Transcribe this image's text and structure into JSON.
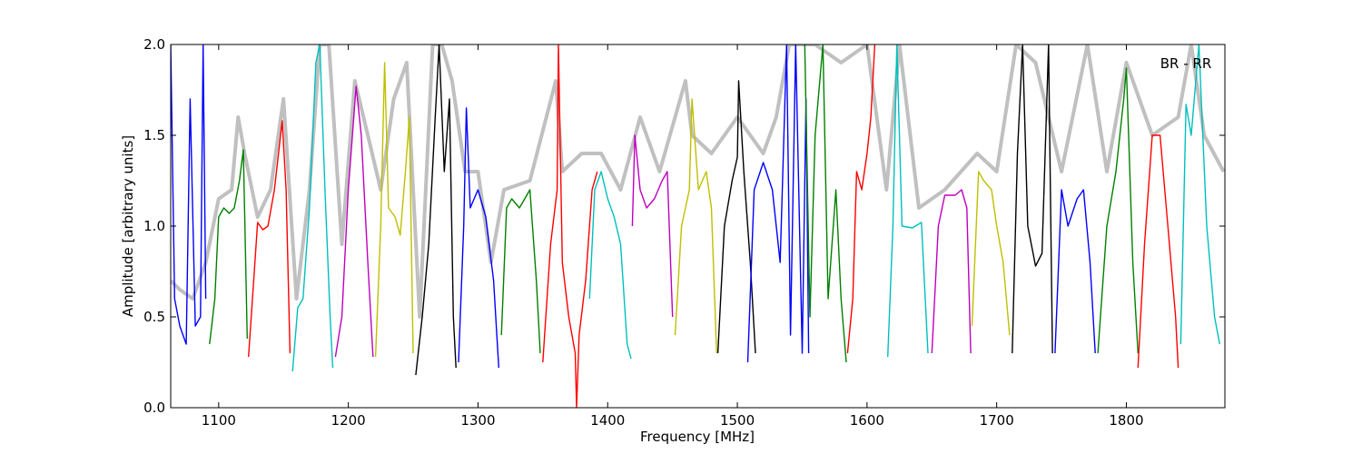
{
  "chart_data": {
    "type": "line",
    "annotation": "BR - RR",
    "xlabel": "Frequency [MHz]",
    "ylabel": "Amplitude [arbitrary units]",
    "xlim": [
      1063,
      1876
    ],
    "ylim": [
      0,
      2
    ],
    "xticks": [
      1100,
      1200,
      1300,
      1400,
      1500,
      1600,
      1700,
      1800
    ],
    "yticks": [
      {
        "value": 0,
        "label": "0.0"
      },
      {
        "value": 0.5,
        "label": "0.5"
      },
      {
        "value": 1,
        "label": "1.0"
      },
      {
        "value": 1.5,
        "label": "1.5"
      },
      {
        "value": 2,
        "label": "2.0"
      }
    ],
    "series": [
      {
        "color": "#c0c0c0",
        "x": [
          1063,
          1070,
          1080,
          1090,
          1100,
          1110,
          1115,
          1120,
          1130,
          1140,
          1150,
          1160,
          1170,
          1178,
          1185,
          1195,
          1205,
          1215,
          1225,
          1235,
          1245,
          1255,
          1265,
          1272,
          1280,
          1290,
          1300,
          1310,
          1320,
          1340,
          1360,
          1365,
          1380,
          1395,
          1410,
          1425,
          1440,
          1460,
          1465,
          1480,
          1500,
          1510,
          1520,
          1530,
          1540,
          1560,
          1580,
          1600,
          1615,
          1625,
          1640,
          1660,
          1685,
          1700,
          1715,
          1730,
          1750,
          1770,
          1785,
          1800,
          1820,
          1840,
          1850,
          1860,
          1875
        ],
        "values": [
          0.7,
          0.65,
          0.6,
          0.8,
          1.15,
          1.2,
          1.6,
          1.4,
          1.05,
          1.2,
          1.7,
          0.6,
          1.2,
          2.0,
          2.0,
          0.9,
          1.8,
          1.5,
          1.2,
          1.7,
          1.9,
          0.5,
          2.0,
          2.0,
          1.8,
          1.3,
          1.3,
          0.8,
          1.2,
          1.25,
          1.8,
          1.3,
          1.4,
          1.4,
          1.2,
          1.6,
          1.3,
          1.8,
          1.5,
          1.4,
          1.6,
          1.5,
          1.4,
          1.6,
          2.0,
          2.0,
          1.9,
          2.0,
          1.2,
          2.0,
          1.1,
          1.2,
          1.4,
          1.3,
          2.0,
          1.9,
          1.3,
          2.0,
          1.3,
          1.9,
          1.5,
          1.6,
          2.0,
          1.5,
          1.3
        ]
      },
      {
        "color": "#0000ff",
        "x": [
          1063,
          1066,
          1070,
          1075,
          1078,
          1082,
          1086,
          1088,
          1090
        ],
        "values": [
          2.0,
          0.6,
          0.45,
          0.35,
          1.7,
          0.45,
          0.5,
          2.0,
          0.6
        ]
      },
      {
        "color": "#008000",
        "x": [
          1093,
          1097,
          1100,
          1104,
          1108,
          1112,
          1116,
          1119,
          1122
        ],
        "values": [
          0.35,
          0.6,
          1.05,
          1.1,
          1.07,
          1.1,
          1.25,
          1.42,
          0.38
        ]
      },
      {
        "color": "#ff0000",
        "x": [
          1123,
          1127,
          1130,
          1134,
          1138,
          1143,
          1149,
          1152,
          1155
        ],
        "values": [
          0.28,
          0.7,
          1.02,
          0.98,
          1.0,
          1.2,
          1.58,
          1.2,
          0.3
        ]
      },
      {
        "color": "#00bfbf",
        "x": [
          1157,
          1161,
          1165,
          1170,
          1175,
          1178,
          1182,
          1186,
          1188
        ],
        "values": [
          0.2,
          0.55,
          0.6,
          1.1,
          1.9,
          2.0,
          1.2,
          0.5,
          0.22
        ]
      },
      {
        "color": "#bf00bf",
        "x": [
          1190,
          1195,
          1200,
          1206,
          1210,
          1215,
          1219
        ],
        "values": [
          0.28,
          0.5,
          1.2,
          1.77,
          1.5,
          0.8,
          0.28
        ]
      },
      {
        "color": "#bfbf00",
        "x": [
          1221,
          1225,
          1228,
          1231,
          1236,
          1240,
          1244,
          1247,
          1250
        ],
        "values": [
          0.28,
          1.0,
          1.9,
          1.1,
          1.05,
          0.95,
          1.3,
          1.6,
          0.3
        ]
      },
      {
        "color": "#000000",
        "x": [
          1252,
          1257,
          1262,
          1267,
          1270,
          1274,
          1278,
          1281,
          1283
        ],
        "values": [
          0.18,
          0.5,
          0.9,
          1.6,
          2.0,
          1.3,
          1.7,
          0.5,
          0.22
        ]
      },
      {
        "color": "#0000ff",
        "x": [
          1285,
          1289,
          1291,
          1294,
          1300,
          1306,
          1312,
          1316
        ],
        "values": [
          0.25,
          1.0,
          1.65,
          1.1,
          1.2,
          1.05,
          0.7,
          0.22
        ]
      },
      {
        "color": "#008000",
        "x": [
          1318,
          1322,
          1326,
          1332,
          1340,
          1345,
          1348
        ],
        "values": [
          0.4,
          1.1,
          1.15,
          1.1,
          1.2,
          0.7,
          0.3
        ]
      },
      {
        "color": "#ff0000",
        "x": [
          1350,
          1356,
          1361,
          1362,
          1365,
          1370,
          1375,
          1376,
          1378,
          1383,
          1388,
          1392
        ],
        "values": [
          0.25,
          0.9,
          1.2,
          2.0,
          0.8,
          0.5,
          0.3,
          0,
          0.4,
          0.7,
          1.2,
          1.3
        ]
      },
      {
        "color": "#00bfbf",
        "x": [
          1386,
          1390,
          1395,
          1400,
          1405,
          1410,
          1415,
          1418
        ],
        "values": [
          0.6,
          1.2,
          1.3,
          1.15,
          1.05,
          0.9,
          0.35,
          0.27
        ]
      },
      {
        "color": "#bf00bf",
        "x": [
          1419,
          1421,
          1425,
          1430,
          1436,
          1442,
          1446,
          1450
        ],
        "values": [
          1.0,
          1.5,
          1.2,
          1.1,
          1.15,
          1.25,
          1.3,
          0.5
        ]
      },
      {
        "color": "#bfbf00",
        "x": [
          1452,
          1457,
          1463,
          1465,
          1470,
          1476,
          1480,
          1484
        ],
        "values": [
          0.4,
          1.0,
          1.2,
          1.7,
          1.2,
          1.3,
          1.1,
          0.3
        ]
      },
      {
        "color": "#000000",
        "x": [
          1485,
          1490,
          1496,
          1500,
          1501,
          1505,
          1510,
          1514
        ],
        "values": [
          0.3,
          1.0,
          1.25,
          1.38,
          1.8,
          1.3,
          0.8,
          0.3
        ]
      },
      {
        "color": "#0000ff",
        "x": [
          1508,
          1513,
          1520,
          1527,
          1533,
          1538,
          1541,
          1545,
          1550,
          1553,
          1555
        ],
        "values": [
          0.25,
          1.2,
          1.35,
          1.2,
          0.8,
          2.0,
          0.4,
          2.0,
          0.3,
          1.7,
          0.3
        ]
      },
      {
        "color": "#008000",
        "x": [
          1552,
          1556,
          1560,
          1566,
          1570,
          1576,
          1580,
          1584
        ],
        "values": [
          2.0,
          0.5,
          1.5,
          2.0,
          0.6,
          1.2,
          0.6,
          0.25
        ]
      },
      {
        "color": "#ff0000",
        "x": [
          1585,
          1589,
          1592,
          1596,
          1600,
          1603,
          1606
        ],
        "values": [
          0.3,
          0.6,
          1.3,
          1.2,
          1.4,
          1.6,
          2.0
        ]
      },
      {
        "color": "#00bfbf",
        "x": [
          1616,
          1620,
          1623,
          1627,
          1635,
          1642,
          1647
        ],
        "values": [
          0.28,
          1.0,
          2.0,
          1.0,
          0.99,
          1.02,
          0.3
        ]
      },
      {
        "color": "#bf00bf",
        "x": [
          1650,
          1655,
          1660,
          1668,
          1673,
          1677,
          1680
        ],
        "values": [
          0.3,
          1.0,
          1.17,
          1.17,
          1.2,
          1.1,
          0.3
        ]
      },
      {
        "color": "#bfbf00",
        "x": [
          1681,
          1686,
          1690,
          1696,
          1700,
          1705,
          1710
        ],
        "values": [
          0.45,
          1.3,
          1.25,
          1.2,
          1.0,
          0.8,
          0.4
        ]
      },
      {
        "color": "#000000",
        "x": [
          1712,
          1716,
          1720,
          1724,
          1730,
          1735,
          1740,
          1743
        ],
        "values": [
          0.3,
          1.4,
          2.0,
          1.0,
          0.78,
          0.85,
          2.0,
          0.3
        ]
      },
      {
        "color": "#0000ff",
        "x": [
          1745,
          1750,
          1755,
          1762,
          1767,
          1772,
          1776
        ],
        "values": [
          0.3,
          1.2,
          1.0,
          1.15,
          1.2,
          0.8,
          0.3
        ]
      },
      {
        "color": "#008000",
        "x": [
          1778,
          1785,
          1792,
          1798,
          1800,
          1805,
          1809
        ],
        "values": [
          0.3,
          1.0,
          1.3,
          1.7,
          1.87,
          0.8,
          0.3
        ]
      },
      {
        "color": "#ff0000",
        "x": [
          1809,
          1814,
          1820,
          1826,
          1832,
          1838,
          1840
        ],
        "values": [
          0.22,
          0.9,
          1.5,
          1.5,
          1.0,
          0.5,
          0.22
        ]
      },
      {
        "color": "#00bfbf",
        "x": [
          1842,
          1846,
          1850,
          1856,
          1862,
          1868,
          1872
        ],
        "values": [
          0.35,
          1.67,
          1.5,
          2.0,
          1.0,
          0.5,
          0.35
        ]
      }
    ]
  }
}
